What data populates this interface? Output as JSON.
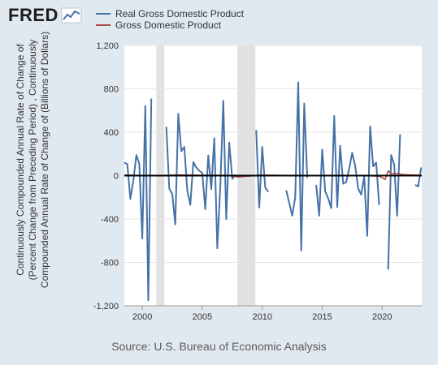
{
  "header": {
    "logo_text": "FRED",
    "logo_icon": "fred-chart-icon"
  },
  "source_text": "Source: U.S. Bureau of Economic Analysis",
  "colors": {
    "background": "#e1e9f0",
    "plot_bg": "#ffffff",
    "series1": "#4572a7",
    "series2": "#aa4643",
    "recession": "#e1e1e1",
    "grid": "#e6e6e6",
    "zero": "#000000"
  },
  "chart_data": {
    "type": "line",
    "title": "",
    "ylabel": "Continuously Compounded Annual Rate of Change of (Percent Change from Preceding Period) , Continuously Compounded Annual Rate of Change of (Billions of Dollars)",
    "xlabel": "",
    "xlim": [
      1998.5,
      2023.3
    ],
    "ylim": [
      -1200,
      1200
    ],
    "yticks": [
      "1,200",
      "800",
      "400",
      "0",
      "-400",
      "-800",
      "-1,200"
    ],
    "ytick_values": [
      1200,
      800,
      400,
      0,
      -400,
      -800,
      -1200
    ],
    "xticks": [
      "2000",
      "2005",
      "2010",
      "2015",
      "2020"
    ],
    "xtick_values": [
      2000,
      2005,
      2010,
      2015,
      2020
    ],
    "grid": true,
    "legend_position": "top",
    "recessions": [
      [
        2001.17,
        2001.83
      ],
      [
        2007.92,
        2009.42
      ]
    ],
    "series": [
      {
        "name": "Real Gross Domestic Product",
        "color": "#4572a7",
        "segments": [
          [
            [
              1998.5,
              120
            ],
            [
              1998.75,
              105
            ],
            [
              1999.0,
              -215
            ],
            [
              1999.25,
              -45
            ],
            [
              1999.5,
              190
            ],
            [
              1999.75,
              110
            ],
            [
              2000.0,
              -580
            ],
            [
              2000.25,
              640
            ],
            [
              2000.5,
              -1150
            ],
            [
              2000.75,
              710
            ]
          ],
          [
            [
              2002.0,
              450
            ],
            [
              2002.25,
              -120
            ],
            [
              2002.5,
              -170
            ],
            [
              2002.75,
              -450
            ],
            [
              2003.0,
              570
            ],
            [
              2003.25,
              225
            ],
            [
              2003.5,
              265
            ],
            [
              2003.75,
              -140
            ],
            [
              2004.0,
              -270
            ],
            [
              2004.25,
              125
            ],
            [
              2004.5,
              75
            ],
            [
              2004.75,
              45
            ],
            [
              2005.0,
              25
            ],
            [
              2005.25,
              -310
            ],
            [
              2005.5,
              185
            ],
            [
              2005.75,
              -125
            ],
            [
              2006.0,
              345
            ],
            [
              2006.25,
              -670
            ],
            [
              2006.5,
              -100
            ],
            [
              2006.75,
              690
            ],
            [
              2007.0,
              -400
            ],
            [
              2007.25,
              305
            ],
            [
              2007.5,
              -30
            ],
            [
              2007.75,
              10
            ]
          ],
          [
            [
              2009.5,
              420
            ],
            [
              2009.75,
              -295
            ],
            [
              2010.0,
              265
            ],
            [
              2010.25,
              -110
            ],
            [
              2010.5,
              -150
            ]
          ],
          [
            [
              2012.0,
              -135
            ],
            [
              2012.25,
              -250
            ],
            [
              2012.5,
              -370
            ],
            [
              2012.75,
              -200
            ],
            [
              2013.0,
              860
            ],
            [
              2013.25,
              -690
            ],
            [
              2013.5,
              665
            ],
            [
              2013.75,
              -20
            ]
          ],
          [
            [
              2014.5,
              -85
            ],
            [
              2014.75,
              -370
            ],
            [
              2015.0,
              240
            ],
            [
              2015.25,
              -145
            ],
            [
              2015.5,
              -210
            ],
            [
              2015.75,
              -300
            ],
            [
              2016.0,
              550
            ],
            [
              2016.25,
              -290
            ],
            [
              2016.5,
              275
            ],
            [
              2016.75,
              -75
            ],
            [
              2017.0,
              -60
            ],
            [
              2017.25,
              65
            ],
            [
              2017.5,
              210
            ],
            [
              2017.75,
              90
            ],
            [
              2018.0,
              -120
            ],
            [
              2018.25,
              -175
            ],
            [
              2018.5,
              -5
            ],
            [
              2018.75,
              -555
            ],
            [
              2019.0,
              455
            ],
            [
              2019.25,
              85
            ],
            [
              2019.5,
              120
            ],
            [
              2019.75,
              -270
            ]
          ],
          [
            [
              2020.5,
              -865
            ],
            [
              2020.75,
              190
            ],
            [
              2021.0,
              100
            ],
            [
              2021.25,
              -370
            ],
            [
              2021.5,
              380
            ]
          ],
          [
            [
              2022.75,
              -85
            ],
            [
              2023.0,
              -100
            ],
            [
              2023.25,
              75
            ]
          ]
        ]
      },
      {
        "name": "Gross Domestic Product",
        "color": "#aa4643",
        "segments": [
          [
            [
              1998.5,
              5
            ],
            [
              1999.5,
              3
            ],
            [
              2000.5,
              -2
            ],
            [
              2001.5,
              1
            ],
            [
              2003.0,
              7
            ],
            [
              2005.0,
              4
            ],
            [
              2007.0,
              3
            ],
            [
              2008.0,
              -12
            ],
            [
              2009.0,
              -4
            ],
            [
              2010.0,
              5
            ],
            [
              2012.0,
              2
            ],
            [
              2014.0,
              2
            ],
            [
              2016.0,
              1
            ],
            [
              2018.0,
              2
            ],
            [
              2019.75,
              -5
            ],
            [
              2020.25,
              -35
            ],
            [
              2020.5,
              45
            ],
            [
              2020.75,
              15
            ],
            [
              2021.25,
              20
            ],
            [
              2021.75,
              10
            ],
            [
              2022.5,
              5
            ],
            [
              2023.25,
              5
            ]
          ]
        ]
      }
    ]
  }
}
